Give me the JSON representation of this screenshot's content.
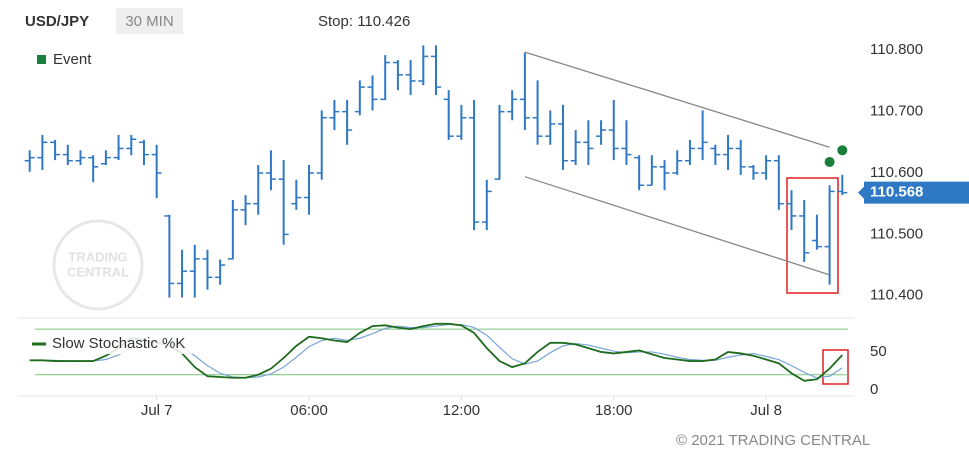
{
  "header": {
    "symbol": "USD/JPY",
    "interval": "30 MIN",
    "stop": "Stop: 110.426"
  },
  "watermark": {
    "line1": "TRADING",
    "line2": "CENTRAL"
  },
  "footer": {
    "copyright": "© 2021 TRADING CENTRAL"
  },
  "chart_data": [
    {
      "type": "ohlc",
      "color": "#2f78c4",
      "x": [
        -5,
        -4.5,
        -4,
        -3.5,
        -3,
        -2.5,
        -2,
        -1.5,
        -1,
        -0.5,
        0,
        0.5,
        1,
        1.5,
        2,
        2.5,
        3,
        3.5,
        4,
        4.5,
        5,
        5.5,
        6,
        6.5,
        7,
        7.5,
        8,
        8.5,
        9,
        9.5,
        10,
        10.5,
        11,
        11.5,
        12,
        12.5,
        13,
        13.5,
        14,
        14.5,
        15,
        15.5,
        16,
        16.5,
        17,
        17.5,
        18,
        18.5,
        19,
        19.5,
        20,
        20.5,
        21,
        21.5,
        22,
        22.5,
        23,
        23.5,
        24,
        24.5,
        25,
        25.5,
        26,
        26.5,
        27
      ],
      "open": [
        110.62,
        110.625,
        110.65,
        110.63,
        110.62,
        110.625,
        110.615,
        110.625,
        110.64,
        110.65,
        110.63,
        110.53,
        110.42,
        110.44,
        110.46,
        110.43,
        110.46,
        110.54,
        110.55,
        110.6,
        110.59,
        110.55,
        110.56,
        110.6,
        110.69,
        110.7,
        110.7,
        110.74,
        110.72,
        110.78,
        110.76,
        110.75,
        110.79,
        110.72,
        110.66,
        110.69,
        110.52,
        110.59,
        110.7,
        110.72,
        110.69,
        110.66,
        110.68,
        110.62,
        110.65,
        110.66,
        110.67,
        110.64,
        110.625,
        110.58,
        110.61,
        110.6,
        110.62,
        110.64,
        110.64,
        110.63,
        110.64,
        110.61,
        110.6,
        110.62,
        110.55,
        110.53,
        110.49,
        110.48,
        110.57
      ],
      "high": [
        110.637,
        110.662,
        110.654,
        110.646,
        110.637,
        110.629,
        110.637,
        110.662,
        110.662,
        110.654,
        110.646,
        110.532,
        110.475,
        110.483,
        110.475,
        110.459,
        110.556,
        110.564,
        110.613,
        110.637,
        110.621,
        110.589,
        110.613,
        110.702,
        110.719,
        110.719,
        110.751,
        110.759,
        110.792,
        110.784,
        110.784,
        110.808,
        110.808,
        110.735,
        110.711,
        110.719,
        110.589,
        110.711,
        110.735,
        110.796,
        110.751,
        110.702,
        110.711,
        110.67,
        110.686,
        110.686,
        110.719,
        110.686,
        110.629,
        110.629,
        110.621,
        110.637,
        110.654,
        110.702,
        110.646,
        110.662,
        110.654,
        110.613,
        110.629,
        110.629,
        110.572,
        110.556,
        110.532,
        110.58,
        110.597
      ],
      "low": [
        110.602,
        110.605,
        110.621,
        110.613,
        110.613,
        110.585,
        110.613,
        110.621,
        110.629,
        110.613,
        110.559,
        110.397,
        110.397,
        110.397,
        110.41,
        110.418,
        110.459,
        110.515,
        110.532,
        110.572,
        110.483,
        110.54,
        110.532,
        110.589,
        110.67,
        110.646,
        110.694,
        110.702,
        110.719,
        110.735,
        110.727,
        110.743,
        110.727,
        110.654,
        110.654,
        110.507,
        110.507,
        110.589,
        110.686,
        110.67,
        110.646,
        110.646,
        110.605,
        110.613,
        110.613,
        110.646,
        110.621,
        110.613,
        110.572,
        110.58,
        110.572,
        110.597,
        110.613,
        110.621,
        110.613,
        110.605,
        110.597,
        110.589,
        110.589,
        110.54,
        110.507,
        110.455,
        110.475,
        110.418,
        110.564
      ],
      "close": [
        110.625,
        110.65,
        110.63,
        110.62,
        110.625,
        110.61,
        110.625,
        110.64,
        110.655,
        110.63,
        110.6,
        110.42,
        110.44,
        110.46,
        110.43,
        110.45,
        110.54,
        110.55,
        110.6,
        110.59,
        110.5,
        110.56,
        110.6,
        110.69,
        110.7,
        110.67,
        110.74,
        110.72,
        110.78,
        110.76,
        110.75,
        110.79,
        110.74,
        110.66,
        110.69,
        110.52,
        110.57,
        110.7,
        110.72,
        110.69,
        110.66,
        110.68,
        110.62,
        110.65,
        110.64,
        110.67,
        110.64,
        110.63,
        110.58,
        110.61,
        110.6,
        110.62,
        110.64,
        110.65,
        110.63,
        110.64,
        110.61,
        110.6,
        110.62,
        110.55,
        110.53,
        110.47,
        110.48,
        110.57,
        110.568
      ],
      "events": {
        "name": "Event",
        "color": "#1a7f3c",
        "x": [
          26.5,
          27
        ],
        "values": [
          110.618,
          110.637
        ]
      },
      "trendlines": [
        {
          "color": "#888888",
          "x": [
            14.5,
            26.5
          ],
          "values": [
            110.797,
            110.642
          ]
        },
        {
          "color": "#888888",
          "x": [
            14.5,
            26.5
          ],
          "values": [
            110.594,
            110.434
          ]
        }
      ],
      "last_price": 110.568,
      "last_price_color": "#2f78c4",
      "xlim": [
        -5.5,
        27.5
      ],
      "ylim": [
        110.38,
        110.82
      ],
      "yticks": [
        {
          "value": 110.8,
          "label": "110.800"
        },
        {
          "value": 110.7,
          "label": "110.700"
        },
        {
          "value": 110.6,
          "label": "110.600"
        },
        {
          "value": 110.5,
          "label": "110.500"
        },
        {
          "value": 110.4,
          "label": "110.400"
        }
      ],
      "legend": "top-left"
    },
    {
      "type": "line",
      "x": [
        -5,
        -4.5,
        -4,
        -3.5,
        -3,
        -2.5,
        -2,
        -1.5,
        -1,
        -0.5,
        0,
        0.5,
        1,
        1.5,
        2,
        2.5,
        3,
        3.5,
        4,
        4.5,
        5,
        5.5,
        6,
        6.5,
        7,
        7.5,
        8,
        8.5,
        9,
        9.5,
        10,
        10.5,
        11,
        11.5,
        12,
        12.5,
        13,
        13.5,
        14,
        14.5,
        15,
        15.5,
        16,
        16.5,
        17,
        17.5,
        18,
        18.5,
        19,
        19.5,
        20,
        20.5,
        21,
        21.5,
        22,
        22.5,
        23,
        23.5,
        24,
        24.5,
        25,
        25.5,
        26,
        26.5,
        27
      ],
      "series": [
        {
          "name": "Slow Stochastic %K",
          "color": "#1e6b1e",
          "values": [
            39,
            39,
            38,
            38,
            38,
            38,
            45,
            55,
            68,
            66,
            62,
            58,
            48,
            30,
            18,
            17,
            16,
            16,
            20,
            28,
            42,
            58,
            70,
            68,
            65,
            63,
            75,
            84,
            85,
            82,
            80,
            84,
            87,
            87,
            85,
            75,
            55,
            38,
            30,
            35,
            50,
            62,
            62,
            60,
            55,
            50,
            48,
            50,
            52,
            47,
            42,
            40,
            38,
            38,
            40,
            50,
            48,
            45,
            40,
            35,
            22,
            12,
            14,
            28,
            46
          ]
        },
        {
          "color": "#7aa6d8",
          "values": [
            39,
            39,
            39,
            38,
            38,
            38,
            40,
            46,
            56,
            63,
            65,
            62,
            56,
            45,
            32,
            22,
            17,
            16,
            17,
            21,
            30,
            43,
            57,
            65,
            68,
            65,
            68,
            74,
            81,
            84,
            82,
            82,
            84,
            86,
            86,
            82,
            72,
            56,
            41,
            34,
            38,
            49,
            58,
            61,
            59,
            55,
            51,
            49,
            50,
            50,
            47,
            43,
            40,
            39,
            39,
            43,
            46,
            48,
            44,
            40,
            32,
            23,
            16,
            18,
            29
          ]
        }
      ],
      "levels": [
        20,
        80
      ],
      "level_color": "#7cc47c",
      "xlim": [
        -5.5,
        27.5
      ],
      "ylim": [
        -6,
        92
      ],
      "yticks": [
        0,
        50
      ],
      "xticks": [
        {
          "value": 0,
          "label": "Jul 7"
        },
        {
          "value": 6,
          "label": "06:00"
        },
        {
          "value": 12,
          "label": "12:00"
        },
        {
          "value": 18,
          "label": "18:00"
        },
        {
          "value": 24,
          "label": "Jul 8"
        }
      ],
      "legend": "top-left"
    }
  ]
}
